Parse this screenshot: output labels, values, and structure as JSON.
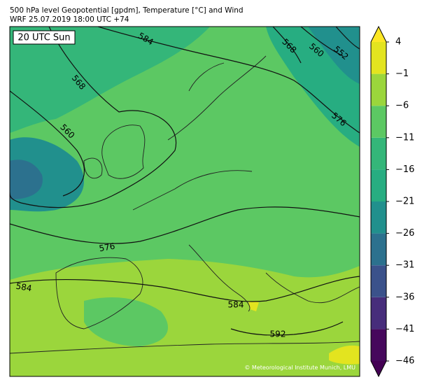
{
  "header": {
    "line1": "500 hPa level Geopotential [gpdm], Temperature [°C] and Wind",
    "line2": "WRF 25.07.2019 18:00 UTC +74"
  },
  "map": {
    "time_label": "20 UTC Sun",
    "contour_labels": [
      "584",
      "568",
      "560",
      "552",
      "568",
      "576",
      "560",
      "576",
      "584",
      "584",
      "592"
    ],
    "copyright": "© Meteorological Institute Munich, LMU"
  },
  "colorbar": {
    "lim": [
      -46,
      4
    ],
    "ticks": [
      {
        "value": -46,
        "label": "−46"
      },
      {
        "value": -41,
        "label": "−41"
      },
      {
        "value": -36,
        "label": "−36"
      },
      {
        "value": -31,
        "label": "−31"
      },
      {
        "value": -26,
        "label": "−26"
      },
      {
        "value": -21,
        "label": "−21"
      },
      {
        "value": -16,
        "label": "−16"
      },
      {
        "value": -11,
        "label": "−11"
      },
      {
        "value": -6,
        "label": "−6"
      },
      {
        "value": -1,
        "label": "−1"
      },
      4
    ],
    "colors": [
      "#46085c",
      "#472d7b",
      "#3b528b",
      "#2c718e",
      "#21908d",
      "#27ad81",
      "#34b679",
      "#5cc863",
      "#9bd63c",
      "#e3e41f"
    ],
    "extend_colors": [
      "#440154",
      "#fde725"
    ]
  }
}
